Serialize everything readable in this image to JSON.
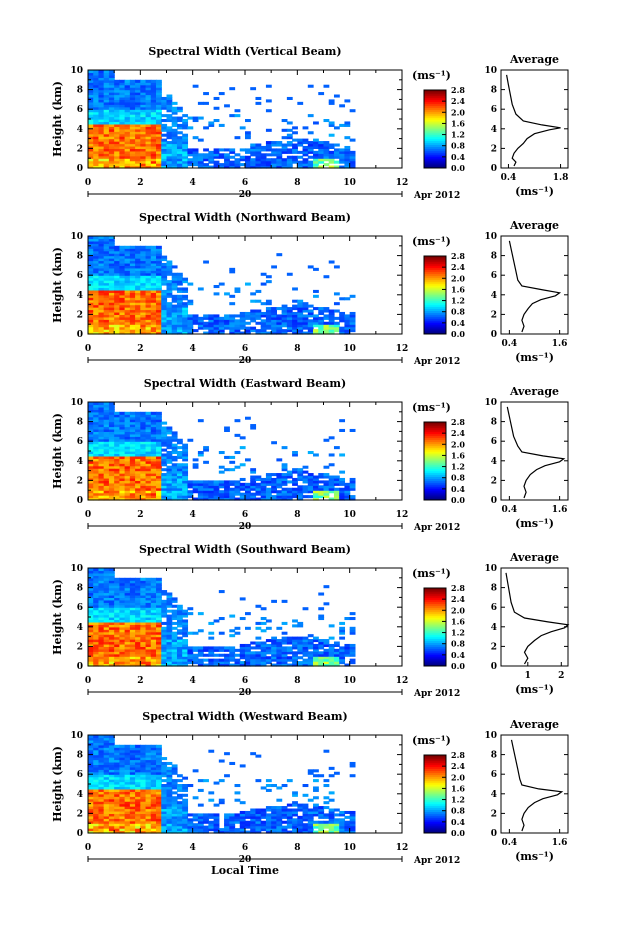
{
  "chart_data": [
    {
      "type": "heatmap",
      "title": "Spectral Width (Vertical Beam)",
      "ylabel": "Height (km)",
      "xlim": [
        0,
        12
      ],
      "ylim": [
        0,
        10
      ],
      "colorbar": {
        "unit_label": "(ms⁻¹)",
        "ticks": [
          "2.8",
          "2.4",
          "2.0",
          "1.6",
          "1.2",
          "0.8",
          "0.4",
          "0.0"
        ],
        "range": [
          0,
          2.8
        ]
      },
      "date_marker": "20",
      "date_label": "Apr 2012",
      "average_profile": {
        "title": "Average",
        "xlabel": "(ms⁻¹)",
        "xticks": [
          "0.4",
          "1.8"
        ],
        "xlim": [
          0.2,
          2.0
        ],
        "points": [
          [
            0.55,
            0.2
          ],
          [
            0.6,
            0.6
          ],
          [
            0.5,
            1.0
          ],
          [
            0.55,
            1.5
          ],
          [
            0.65,
            2.0
          ],
          [
            0.8,
            2.5
          ],
          [
            0.9,
            3.0
          ],
          [
            1.1,
            3.5
          ],
          [
            1.5,
            3.9
          ],
          [
            1.8,
            4.1
          ],
          [
            1.3,
            4.4
          ],
          [
            0.8,
            4.8
          ],
          [
            0.6,
            5.5
          ],
          [
            0.5,
            6.5
          ],
          [
            0.45,
            7.5
          ],
          [
            0.4,
            8.5
          ],
          [
            0.35,
            9.5
          ]
        ]
      }
    },
    {
      "type": "heatmap",
      "title": "Spectral Width (Northward Beam)",
      "ylabel": "Height (km)",
      "xlim": [
        0,
        12
      ],
      "ylim": [
        0,
        10
      ],
      "colorbar": {
        "unit_label": "(ms⁻¹)",
        "ticks": [
          "2.8",
          "2.4",
          "2.0",
          "1.6",
          "1.2",
          "0.8",
          "0.4",
          "0.0"
        ],
        "range": [
          0,
          2.8
        ]
      },
      "date_marker": "20",
      "date_label": "Apr 2012",
      "average_profile": {
        "title": "Average",
        "xlabel": "(ms⁻¹)",
        "xticks": [
          "0.4",
          "1.6"
        ],
        "xlim": [
          0.2,
          1.8
        ],
        "points": [
          [
            0.7,
            0.2
          ],
          [
            0.75,
            0.8
          ],
          [
            0.7,
            1.4
          ],
          [
            0.75,
            2.0
          ],
          [
            0.85,
            2.6
          ],
          [
            0.95,
            3.1
          ],
          [
            1.15,
            3.5
          ],
          [
            1.5,
            3.9
          ],
          [
            1.6,
            4.2
          ],
          [
            1.2,
            4.5
          ],
          [
            0.7,
            4.9
          ],
          [
            0.6,
            5.5
          ],
          [
            0.55,
            6.5
          ],
          [
            0.5,
            7.5
          ],
          [
            0.45,
            8.5
          ],
          [
            0.4,
            9.5
          ]
        ]
      }
    },
    {
      "type": "heatmap",
      "title": "Spectral Width (Eastward Beam)",
      "ylabel": "Height (km)",
      "xlim": [
        0,
        12
      ],
      "ylim": [
        0,
        10
      ],
      "colorbar": {
        "unit_label": "(ms⁻¹)",
        "ticks": [
          "2.8",
          "2.4",
          "2.0",
          "1.6",
          "1.2",
          "0.8",
          "0.4",
          "0.0"
        ],
        "range": [
          0,
          2.8
        ]
      },
      "date_marker": "20",
      "date_label": "Apr 2012",
      "average_profile": {
        "title": "Average",
        "xlabel": "(ms⁻¹)",
        "xticks": [
          "0.4",
          "1.6"
        ],
        "xlim": [
          0.2,
          1.8
        ],
        "points": [
          [
            0.75,
            0.2
          ],
          [
            0.8,
            0.8
          ],
          [
            0.75,
            1.4
          ],
          [
            0.8,
            2.0
          ],
          [
            0.9,
            2.6
          ],
          [
            1.05,
            3.1
          ],
          [
            1.25,
            3.5
          ],
          [
            1.6,
            3.9
          ],
          [
            1.7,
            4.2
          ],
          [
            1.2,
            4.5
          ],
          [
            0.7,
            4.9
          ],
          [
            0.6,
            5.5
          ],
          [
            0.5,
            6.5
          ],
          [
            0.45,
            7.5
          ],
          [
            0.4,
            8.5
          ],
          [
            0.35,
            9.5
          ]
        ]
      }
    },
    {
      "type": "heatmap",
      "title": "Spectral Width (Southward Beam)",
      "ylabel": "Height (km)",
      "xlim": [
        0,
        12
      ],
      "ylim": [
        0,
        10
      ],
      "colorbar": {
        "unit_label": "(ms⁻¹)",
        "ticks": [
          "2.8",
          "2.4",
          "2.0",
          "1.6",
          "1.2",
          "0.8",
          "0.4",
          "0.0"
        ],
        "range": [
          0,
          2.8
        ]
      },
      "date_marker": "20",
      "date_label": "Apr 2012",
      "average_profile": {
        "title": "Average",
        "xlabel": "(ms⁻¹)",
        "xticks": [
          "1",
          "2"
        ],
        "xlim": [
          0.2,
          2.2
        ],
        "points": [
          [
            0.9,
            0.2
          ],
          [
            1.0,
            0.8
          ],
          [
            0.9,
            1.4
          ],
          [
            1.0,
            2.0
          ],
          [
            1.2,
            2.6
          ],
          [
            1.4,
            3.1
          ],
          [
            1.7,
            3.5
          ],
          [
            2.1,
            3.9
          ],
          [
            2.2,
            4.2
          ],
          [
            1.6,
            4.5
          ],
          [
            0.9,
            4.9
          ],
          [
            0.6,
            5.5
          ],
          [
            0.5,
            6.5
          ],
          [
            0.45,
            7.5
          ],
          [
            0.4,
            8.5
          ],
          [
            0.35,
            9.5
          ]
        ]
      }
    },
    {
      "type": "heatmap",
      "title": "Spectral Width (Westward Beam)",
      "ylabel": "Height (km)",
      "xlabel": "Local Time",
      "xlim": [
        0,
        12
      ],
      "ylim": [
        0,
        10
      ],
      "colorbar": {
        "unit_label": "(ms⁻¹)",
        "ticks": [
          "2.8",
          "2.4",
          "2.0",
          "1.6",
          "1.2",
          "0.8",
          "0.4",
          "0.0"
        ],
        "range": [
          0,
          2.8
        ]
      },
      "date_marker": "20",
      "date_label": "Apr 2012",
      "average_profile": {
        "title": "Average",
        "xlabel": "(ms⁻¹)",
        "xticks": [
          "0.4",
          "1.6"
        ],
        "xlim": [
          0.2,
          1.8
        ],
        "points": [
          [
            0.7,
            0.2
          ],
          [
            0.75,
            0.8
          ],
          [
            0.7,
            1.4
          ],
          [
            0.75,
            2.0
          ],
          [
            0.85,
            2.6
          ],
          [
            1.0,
            3.1
          ],
          [
            1.2,
            3.5
          ],
          [
            1.55,
            3.9
          ],
          [
            1.65,
            4.2
          ],
          [
            1.1,
            4.5
          ],
          [
            0.7,
            4.9
          ],
          [
            0.65,
            5.5
          ],
          [
            0.6,
            6.5
          ],
          [
            0.55,
            7.5
          ],
          [
            0.5,
            8.5
          ],
          [
            0.45,
            9.5
          ]
        ]
      }
    }
  ],
  "xticks": [
    "0",
    "2",
    "4",
    "6",
    "8",
    "10",
    "12"
  ],
  "yticks": [
    "0",
    "2",
    "4",
    "6",
    "8",
    "10"
  ]
}
